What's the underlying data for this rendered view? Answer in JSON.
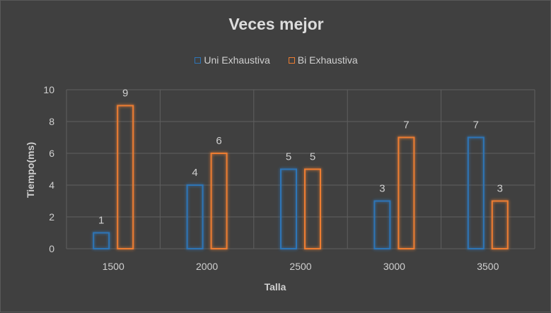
{
  "chart_data": {
    "type": "bar",
    "title": "Veces mejor",
    "xlabel": "Talla",
    "ylabel": "Tiempo(ms)",
    "categories": [
      "1500",
      "2000",
      "2500",
      "3000",
      "3500"
    ],
    "series": [
      {
        "name": "Uni Exhaustiva",
        "color": "#2e75b6",
        "values": [
          1,
          4,
          5,
          3,
          7
        ]
      },
      {
        "name": "Bi Exhaustiva",
        "color": "#ed7d31",
        "values": [
          9,
          6,
          5,
          7,
          3
        ]
      }
    ],
    "ylim": [
      0,
      10
    ],
    "yticks": [
      0,
      2,
      4,
      6,
      8,
      10
    ],
    "grid": true,
    "legend_position": "top"
  }
}
